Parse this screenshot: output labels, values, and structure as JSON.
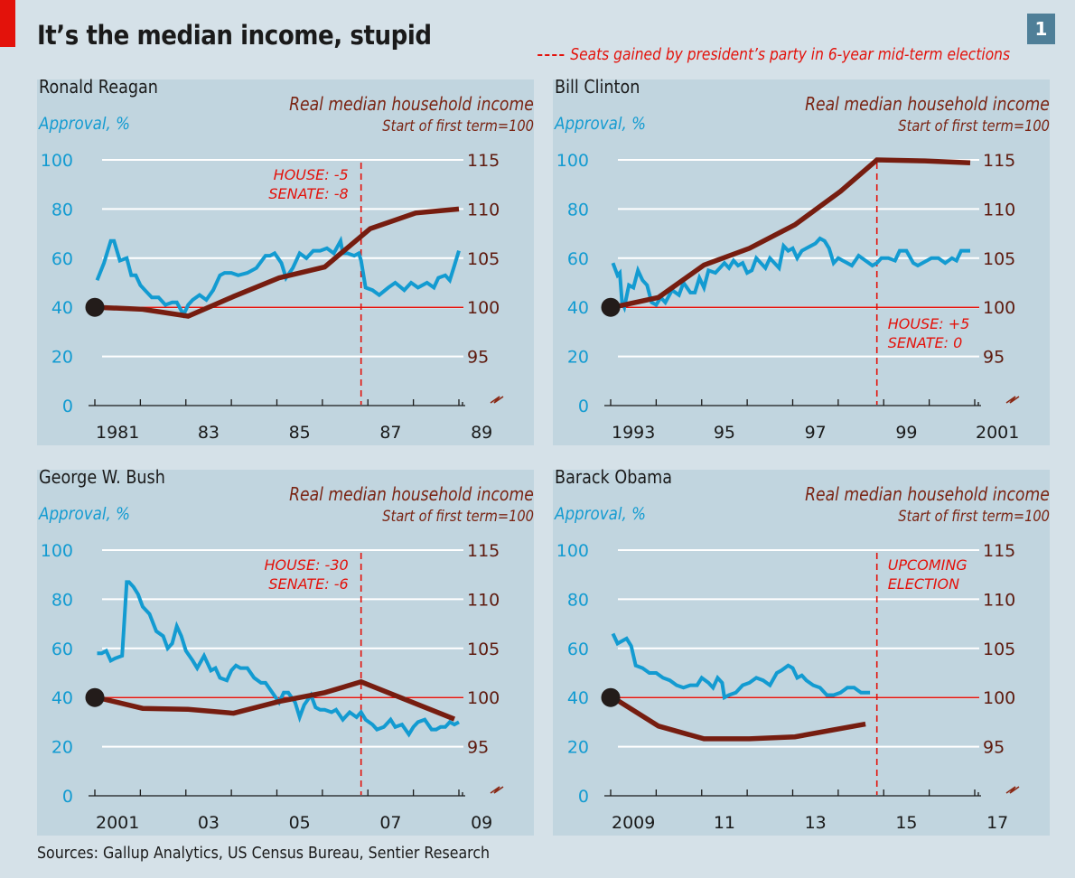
{
  "header": {
    "title": "It’s the median income, stupid",
    "chart_number": "1",
    "legend_label": "Seats gained by president’s party in 6-year mid-term elections"
  },
  "colors": {
    "approval": "#139bd1",
    "income": "#761d10",
    "baseline": "#e3120b",
    "election": "#e3120b",
    "panel_bg": "#c1d5df",
    "page_bg": "#d5e1e8",
    "badge": "#4f7f98"
  },
  "footer": {
    "source": "Sources: Gallup Analytics, US Census Bureau, Sentier Research"
  },
  "chart_data": [
    {
      "type": "line",
      "title": "Ronald Reagan",
      "left_axis_label": "Approval, %",
      "right_axis_label": "Real median household income",
      "right_axis_sublabel": "Start of first term=100",
      "left_ticks": [
        "0",
        "20",
        "40",
        "60",
        "80",
        "100"
      ],
      "right_ticks": [
        "95",
        "100",
        "105",
        "110",
        "115"
      ],
      "x_tick_labels": [
        "1981",
        "83",
        "85",
        "87",
        "89"
      ],
      "x_range": [
        1981,
        1989
      ],
      "left_ylim": [
        0,
        100
      ],
      "right_ylim": [
        90,
        115
      ],
      "baseline": 100,
      "election": {
        "x": 1986.85,
        "lines": [
          "HOUSE: -5",
          "SENATE: -8"
        ],
        "position": "left"
      },
      "series": [
        {
          "name": "Approval, %",
          "axis": "left",
          "x": [
            1981.05,
            1981.2,
            1981.35,
            1981.42,
            1981.55,
            1981.7,
            1981.8,
            1981.9,
            1982.0,
            1982.1,
            1982.25,
            1982.4,
            1982.55,
            1982.7,
            1982.8,
            1982.95,
            1983.05,
            1983.15,
            1983.3,
            1983.45,
            1983.6,
            1983.75,
            1983.85,
            1984.0,
            1984.15,
            1984.35,
            1984.55,
            1984.75,
            1984.85,
            1984.95,
            1985.1,
            1985.2,
            1985.35,
            1985.5,
            1985.65,
            1985.8,
            1985.95,
            1986.1,
            1986.25,
            1986.4,
            1986.45,
            1986.55,
            1986.7,
            1986.8,
            1986.85,
            1986.95,
            1987.1,
            1987.25,
            1987.45,
            1987.6,
            1987.8,
            1987.95,
            1988.1,
            1988.3,
            1988.45,
            1988.55,
            1988.7,
            1988.8,
            1988.9,
            1989.0
          ],
          "values": [
            51,
            58,
            67,
            67,
            59,
            60,
            53,
            53,
            49,
            47,
            44,
            44,
            41,
            42,
            42,
            37,
            41,
            43,
            45,
            43,
            47,
            53,
            54,
            54,
            53,
            54,
            56,
            61,
            61,
            62,
            58,
            52,
            56,
            62,
            60,
            63,
            63,
            64,
            62,
            67,
            62,
            62,
            61,
            62,
            59,
            48,
            47,
            45,
            48,
            50,
            47,
            50,
            48,
            50,
            48,
            52,
            53,
            51,
            57,
            63
          ]
        },
        {
          "name": "Real median household income",
          "axis": "right",
          "x": [
            1981.05,
            1982.05,
            1983.05,
            1984.05,
            1985.05,
            1986.05,
            1987.05,
            1988.05,
            1989.0
          ],
          "values": [
            100,
            99.8,
            99.1,
            101.1,
            103.0,
            104.1,
            108.0,
            109.6,
            110.0
          ]
        }
      ]
    },
    {
      "type": "line",
      "title": "Bill Clinton",
      "left_axis_label": "Approval, %",
      "right_axis_label": "Real median household income",
      "right_axis_sublabel": "Start of first term=100",
      "left_ticks": [
        "0",
        "20",
        "40",
        "60",
        "80",
        "100"
      ],
      "right_ticks": [
        "95",
        "100",
        "105",
        "110",
        "115"
      ],
      "x_tick_labels": [
        "1993",
        "95",
        "97",
        "99",
        "2001"
      ],
      "x_range": [
        1993,
        2001
      ],
      "left_ylim": [
        0,
        100
      ],
      "right_ylim": [
        90,
        115
      ],
      "baseline": 100,
      "election": {
        "x": 1998.85,
        "lines": [
          "HOUSE: +5",
          "SENATE: 0"
        ],
        "position": "right-below"
      },
      "series": [
        {
          "name": "Approval, %",
          "axis": "left",
          "x": [
            1993.05,
            1993.15,
            1993.2,
            1993.25,
            1993.3,
            1993.4,
            1993.5,
            1993.6,
            1993.7,
            1993.8,
            1993.9,
            1994.0,
            1994.1,
            1994.2,
            1994.35,
            1994.5,
            1994.6,
            1994.75,
            1994.85,
            1994.95,
            1995.05,
            1995.15,
            1995.3,
            1995.4,
            1995.5,
            1995.6,
            1995.7,
            1995.8,
            1995.9,
            1996.0,
            1996.1,
            1996.2,
            1996.3,
            1996.4,
            1996.5,
            1996.6,
            1996.7,
            1996.8,
            1996.9,
            1997.0,
            1997.1,
            1997.2,
            1997.3,
            1997.4,
            1997.5,
            1997.6,
            1997.7,
            1997.8,
            1997.9,
            1998.0,
            1998.1,
            1998.2,
            1998.3,
            1998.45,
            1998.6,
            1998.75,
            1998.85,
            1998.95,
            1999.1,
            1999.25,
            1999.35,
            1999.5,
            1999.65,
            1999.75,
            1999.85,
            1999.95,
            2000.05,
            2000.2,
            2000.35,
            2000.5,
            2000.6,
            2000.7,
            2000.8,
            2000.9
          ],
          "values": [
            58,
            53,
            54,
            42,
            40,
            49,
            48,
            55,
            51,
            49,
            42,
            41,
            44,
            42,
            47,
            45,
            50,
            46,
            46,
            52,
            48,
            55,
            54,
            56,
            58,
            56,
            59,
            57,
            58,
            54,
            55,
            60,
            58,
            56,
            60,
            58,
            56,
            65,
            63,
            64,
            60,
            63,
            64,
            65,
            66,
            68,
            67,
            64,
            58,
            60,
            59,
            58,
            57,
            61,
            59,
            57,
            58,
            60,
            60,
            59,
            63,
            63,
            58,
            57,
            58,
            59,
            60,
            60,
            58,
            60,
            59,
            63,
            63,
            63
          ]
        },
        {
          "name": "Real median household income",
          "axis": "right",
          "x": [
            1993.05,
            1994.05,
            1995.05,
            1996.05,
            1997.05,
            1998.05,
            1998.85,
            1999.9,
            2000.9
          ],
          "values": [
            100,
            101.0,
            104.3,
            106.0,
            108.4,
            111.8,
            115.0,
            114.9,
            114.7
          ]
        }
      ]
    },
    {
      "type": "line",
      "title": "George W. Bush",
      "left_axis_label": "Approval, %",
      "right_axis_label": "Real median household income",
      "right_axis_sublabel": "Start of first term=100",
      "left_ticks": [
        "0",
        "20",
        "40",
        "60",
        "80",
        "100"
      ],
      "right_ticks": [
        "95",
        "100",
        "105",
        "110",
        "115"
      ],
      "x_tick_labels": [
        "2001",
        "03",
        "05",
        "07",
        "09"
      ],
      "x_range": [
        2001,
        2009
      ],
      "left_ylim": [
        0,
        100
      ],
      "right_ylim": [
        90,
        115
      ],
      "baseline": 100,
      "election": {
        "x": 2006.85,
        "lines": [
          "HOUSE: -30",
          "SENATE: -6"
        ],
        "position": "left"
      },
      "series": [
        {
          "name": "Approval, %",
          "axis": "left",
          "x": [
            2001.05,
            2001.15,
            2001.25,
            2001.35,
            2001.45,
            2001.6,
            2001.7,
            2001.75,
            2001.85,
            2001.95,
            2002.05,
            2002.2,
            2002.35,
            2002.5,
            2002.6,
            2002.7,
            2002.8,
            2002.9,
            2003.0,
            2003.15,
            2003.25,
            2003.4,
            2003.55,
            2003.65,
            2003.75,
            2003.9,
            2004.0,
            2004.1,
            2004.2,
            2004.35,
            2004.5,
            2004.65,
            2004.75,
            2004.9,
            2005.05,
            2005.15,
            2005.25,
            2005.4,
            2005.5,
            2005.6,
            2005.75,
            2005.85,
            2005.95,
            2006.05,
            2006.2,
            2006.3,
            2006.45,
            2006.6,
            2006.75,
            2006.85,
            2006.95,
            2007.1,
            2007.2,
            2007.35,
            2007.5,
            2007.6,
            2007.75,
            2007.9,
            2008.0,
            2008.1,
            2008.25,
            2008.4,
            2008.5,
            2008.6,
            2008.7,
            2008.8,
            2008.9,
            2009.0
          ],
          "values": [
            58,
            58,
            59,
            55,
            56,
            57,
            87,
            87,
            85,
            82,
            77,
            74,
            67,
            65,
            60,
            62,
            69,
            65,
            59,
            55,
            52,
            57,
            51,
            52,
            48,
            47,
            51,
            53,
            52,
            52,
            48,
            46,
            46,
            42,
            38,
            42,
            42,
            38,
            32,
            37,
            41,
            36,
            35,
            35,
            34,
            35,
            31,
            34,
            32,
            34,
            31,
            29,
            27,
            28,
            31,
            28,
            29,
            25,
            28,
            30,
            31,
            27,
            27,
            28,
            28,
            30,
            29,
            30
          ]
        },
        {
          "name": "Real median household income",
          "axis": "right",
          "x": [
            2001.05,
            2002.05,
            2003.05,
            2004.05,
            2005.05,
            2006.05,
            2006.85,
            2008.9
          ],
          "values": [
            100,
            98.9,
            98.8,
            98.4,
            99.6,
            100.5,
            101.6,
            97.8
          ]
        }
      ]
    },
    {
      "type": "line",
      "title": "Barack Obama",
      "left_axis_label": "Approval, %",
      "right_axis_label": "Real median household income",
      "right_axis_sublabel": "Start of first term=100",
      "left_ticks": [
        "0",
        "20",
        "40",
        "60",
        "80",
        "100"
      ],
      "right_ticks": [
        "95",
        "100",
        "105",
        "110",
        "115"
      ],
      "x_tick_labels": [
        "2009",
        "11",
        "13",
        "15",
        "17"
      ],
      "x_range": [
        2009,
        2017
      ],
      "left_ylim": [
        0,
        100
      ],
      "right_ylim": [
        90,
        115
      ],
      "baseline": 100,
      "election": {
        "x": 2014.85,
        "lines": [
          "UPCOMING",
          "ELECTION"
        ],
        "position": "right"
      },
      "series": [
        {
          "name": "Approval, %",
          "axis": "left",
          "x": [
            2009.05,
            2009.15,
            2009.25,
            2009.35,
            2009.45,
            2009.55,
            2009.7,
            2009.85,
            2010.0,
            2010.15,
            2010.3,
            2010.45,
            2010.6,
            2010.75,
            2010.9,
            2011.0,
            2011.15,
            2011.25,
            2011.35,
            2011.45,
            2011.5,
            2011.6,
            2011.75,
            2011.9,
            2012.05,
            2012.2,
            2012.35,
            2012.5,
            2012.65,
            2012.75,
            2012.9,
            2013.0,
            2013.1,
            2013.2,
            2013.3,
            2013.45,
            2013.6,
            2013.75,
            2013.9,
            2014.05,
            2014.2,
            2014.35,
            2014.5,
            2014.6,
            2014.7
          ],
          "values": [
            66,
            62,
            63,
            64,
            61,
            53,
            52,
            50,
            50,
            48,
            47,
            45,
            44,
            45,
            45,
            48,
            46,
            44,
            48,
            46,
            40,
            41,
            42,
            45,
            46,
            48,
            47,
            45,
            50,
            51,
            53,
            52,
            48,
            49,
            47,
            45,
            44,
            41,
            41,
            42,
            44,
            44,
            42,
            42,
            42
          ]
        },
        {
          "name": "Real median household income",
          "axis": "right",
          "x": [
            2009.05,
            2010.05,
            2011.05,
            2012.05,
            2013.05,
            2014.6
          ],
          "values": [
            100,
            97.1,
            95.8,
            95.8,
            96.0,
            97.3
          ]
        }
      ]
    }
  ]
}
